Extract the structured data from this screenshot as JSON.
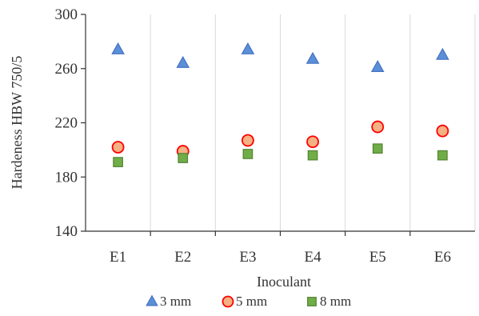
{
  "chart_data": {
    "type": "scatter",
    "categories": [
      "E1",
      "E2",
      "E3",
      "E4",
      "E5",
      "E6"
    ],
    "xlabel": "Inoculant",
    "ylabel": "Hardeness  HBW 750/5",
    "ylim": [
      140,
      300
    ],
    "yticks": [
      "140",
      "180",
      "220",
      "260",
      "300"
    ],
    "grid": "vertical",
    "legend_position": "bottom",
    "series": [
      {
        "name": "3 mm",
        "marker": "triangle",
        "fill": "#5B8FD6",
        "stroke": "#4472C4",
        "values": [
          274,
          264,
          274,
          267,
          261,
          270
        ]
      },
      {
        "name": "5 mm",
        "marker": "circle",
        "fill": "#F4B183",
        "stroke": "#FF0000",
        "values": [
          202,
          199,
          207,
          206,
          217,
          214
        ]
      },
      {
        "name": "8 mm",
        "marker": "square",
        "fill": "#70AD47",
        "stroke": "#548235",
        "values": [
          191,
          194,
          197,
          196,
          201,
          196
        ]
      }
    ]
  }
}
